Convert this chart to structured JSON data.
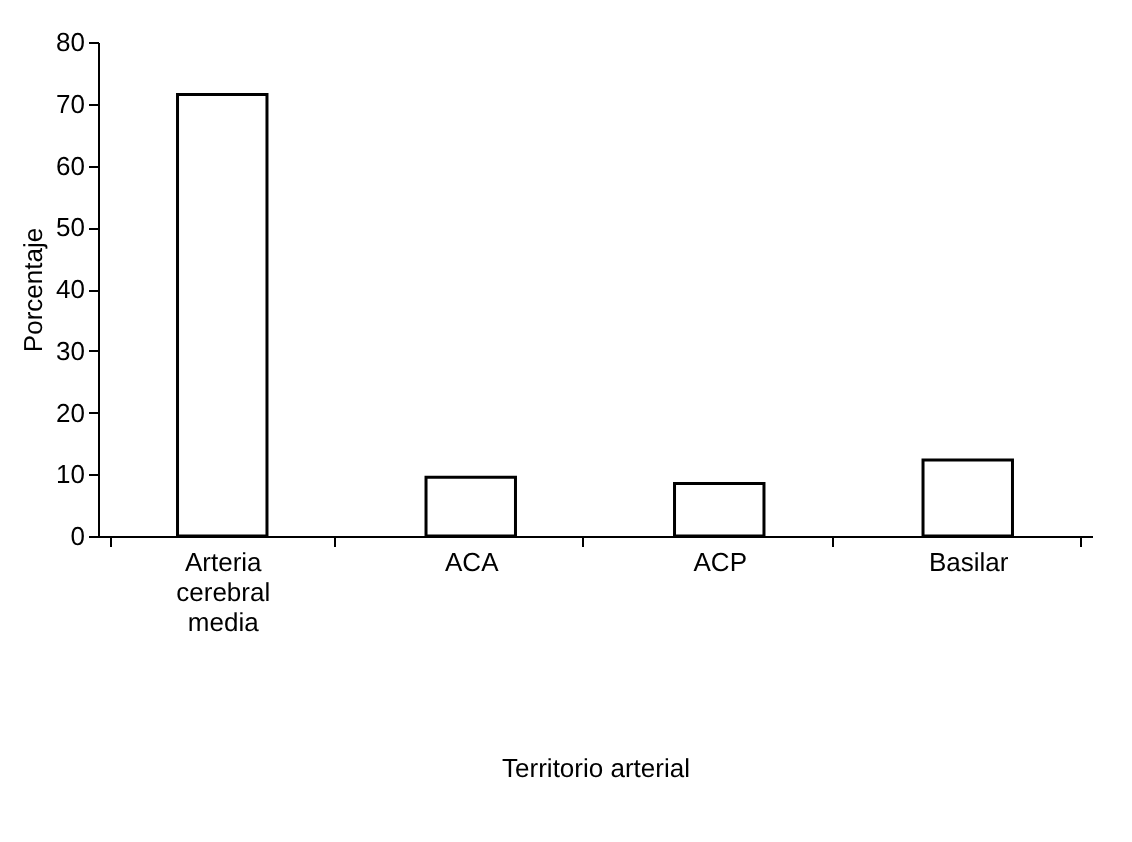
{
  "chart_data": {
    "type": "bar",
    "categories": [
      "Arteria cerebral media",
      "ACA",
      "ACP",
      "Basilar"
    ],
    "values": [
      71.5,
      9.5,
      8.5,
      12.3
    ],
    "color": "#ffffff",
    "xlabel": "Territorio arterial",
    "ylabel": "Porcentaje",
    "ylim": [
      0,
      80
    ],
    "yticks": [
      0,
      10,
      20,
      30,
      40,
      50,
      60,
      70,
      80
    ],
    "grid": false
  }
}
